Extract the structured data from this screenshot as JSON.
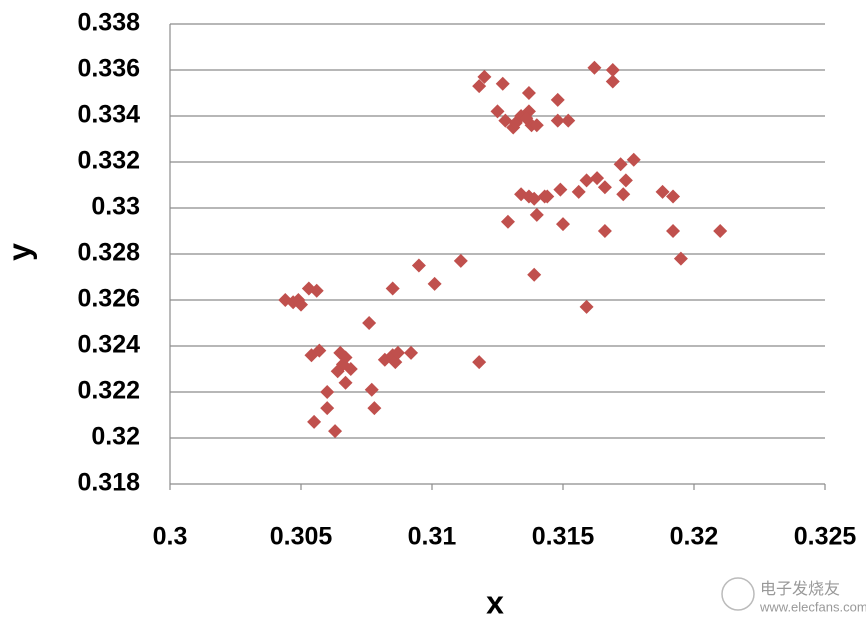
{
  "chart_data": {
    "type": "scatter",
    "x_label": "x",
    "y_label": "y",
    "color": "#c0504d",
    "grid": true,
    "xlim": [
      0.3,
      0.325
    ],
    "xticks": [
      0.3,
      0.305,
      0.31,
      0.315,
      0.32,
      0.325
    ],
    "ylim": [
      0.318,
      0.338
    ],
    "yticks": [
      0.318,
      0.32,
      0.322,
      0.324,
      0.326,
      0.328,
      0.33,
      0.332,
      0.334,
      0.336,
      0.338
    ],
    "x": [
      0.3044,
      0.3047,
      0.3049,
      0.305,
      0.3053,
      0.3056,
      0.3054,
      0.3057,
      0.3065,
      0.3067,
      0.3066,
      0.3069,
      0.3064,
      0.3067,
      0.306,
      0.306,
      0.3055,
      0.3063,
      0.3076,
      0.3077,
      0.3078,
      0.3082,
      0.3085,
      0.3086,
      0.3087,
      0.3092,
      0.3085,
      0.3095,
      0.3101,
      0.3111,
      0.3118,
      0.3118,
      0.312,
      0.3127,
      0.3125,
      0.3128,
      0.3131,
      0.3132,
      0.3134,
      0.3137,
      0.3137,
      0.3138,
      0.314,
      0.3136,
      0.3148,
      0.3148,
      0.3152,
      0.3134,
      0.3137,
      0.3139,
      0.3143,
      0.3144,
      0.3149,
      0.3129,
      0.314,
      0.315,
      0.3139,
      0.3156,
      0.3159,
      0.3163,
      0.3166,
      0.3162,
      0.3169,
      0.3169,
      0.3172,
      0.3174,
      0.3177,
      0.3173,
      0.3188,
      0.3192,
      0.3192,
      0.3195,
      0.321,
      0.3166,
      0.3159
    ],
    "values": [
      0.326,
      0.3259,
      0.326,
      0.3258,
      0.3265,
      0.3264,
      0.3236,
      0.3238,
      0.3237,
      0.3235,
      0.3232,
      0.323,
      0.3229,
      0.3224,
      0.322,
      0.3213,
      0.3207,
      0.3203,
      0.325,
      0.3221,
      0.3213,
      0.3234,
      0.3236,
      0.3233,
      0.3237,
      0.3237,
      0.3265,
      0.3275,
      0.3267,
      0.3277,
      0.3233,
      0.3353,
      0.3357,
      0.3354,
      0.3342,
      0.3338,
      0.3335,
      0.3337,
      0.334,
      0.335,
      0.3342,
      0.3336,
      0.3336,
      0.3339,
      0.3347,
      0.3338,
      0.3338,
      0.3306,
      0.3305,
      0.3304,
      0.3305,
      0.3305,
      0.3308,
      0.3294,
      0.3297,
      0.3293,
      0.3271,
      0.3307,
      0.3312,
      0.3313,
      0.3309,
      0.3361,
      0.336,
      0.3355,
      0.3319,
      0.3312,
      0.3321,
      0.3306,
      0.3307,
      0.3305,
      0.329,
      0.3278,
      0.329,
      0.329,
      0.3257
    ]
  },
  "watermark": {
    "name": "电子发烧友",
    "url": "www.elecfans.com"
  }
}
